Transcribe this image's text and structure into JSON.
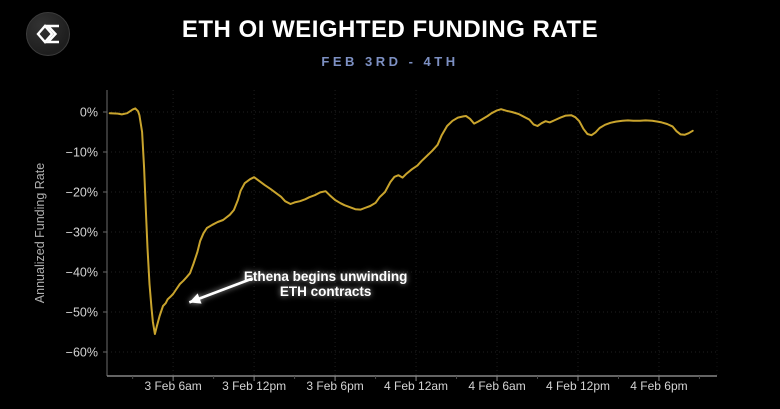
{
  "header": {
    "title": "ETH OI WEIGHTED FUNDING RATE",
    "subtitle": "FEB 3RD - 4TH",
    "logo_name": "sigma-diamond-logo"
  },
  "chart_data": {
    "type": "line",
    "title": "ETH OI WEIGHTED FUNDING RATE",
    "subtitle": "FEB 3RD - 4TH",
    "xlabel": "",
    "ylabel": "Annualized Funding Rate",
    "x_unit": "hours_since_3_Feb_00:00",
    "x_range": [
      1.1,
      46.3
    ],
    "y_range": [
      -66,
      5.5
    ],
    "grid": true,
    "legend": "none",
    "line_color": "#c9a42d",
    "background_color": "#000000",
    "x_ticks": [
      {
        "h": 6,
        "label": "3 Feb 6am"
      },
      {
        "h": 12,
        "label": "3 Feb 12pm"
      },
      {
        "h": 18,
        "label": "3 Feb 6pm"
      },
      {
        "h": 24,
        "label": "4 Feb 12am"
      },
      {
        "h": 30,
        "label": "4 Feb 6am"
      },
      {
        "h": 36,
        "label": "4 Feb 12pm"
      },
      {
        "h": 42,
        "label": "4 Feb 6pm"
      }
    ],
    "y_ticks": [
      {
        "v": 0,
        "label": "0%"
      },
      {
        "v": -10,
        "label": "−10%"
      },
      {
        "v": -20,
        "label": "−20%"
      },
      {
        "v": -30,
        "label": "−30%"
      },
      {
        "v": -40,
        "label": "−40%"
      },
      {
        "v": -50,
        "label": "−50%"
      },
      {
        "v": -60,
        "label": "−60%"
      }
    ],
    "series": [
      {
        "name": "ETH OI weighted funding rate (annualized %)",
        "points": [
          [
            1.3,
            -0.3
          ],
          [
            1.9,
            -0.4
          ],
          [
            2.2,
            -0.6
          ],
          [
            2.6,
            -0.3
          ],
          [
            3.0,
            0.6
          ],
          [
            3.2,
            0.9
          ],
          [
            3.4,
            0.2
          ],
          [
            3.5,
            -0.8
          ],
          [
            3.7,
            -5
          ],
          [
            3.85,
            -14
          ],
          [
            4.0,
            -26
          ],
          [
            4.1,
            -34
          ],
          [
            4.25,
            -43
          ],
          [
            4.4,
            -49
          ],
          [
            4.5,
            -52.5
          ],
          [
            4.65,
            -55.5
          ],
          [
            4.8,
            -53.5
          ],
          [
            5.0,
            -51
          ],
          [
            5.25,
            -48.5
          ],
          [
            5.45,
            -47.8
          ],
          [
            5.6,
            -46.8
          ],
          [
            5.8,
            -46.2
          ],
          [
            6.0,
            -45.5
          ],
          [
            6.2,
            -44.5
          ],
          [
            6.5,
            -43
          ],
          [
            6.75,
            -42.2
          ],
          [
            7.0,
            -41.3
          ],
          [
            7.25,
            -40.3
          ],
          [
            7.5,
            -38
          ],
          [
            7.8,
            -35
          ],
          [
            8.0,
            -32.3
          ],
          [
            8.25,
            -30.3
          ],
          [
            8.5,
            -29
          ],
          [
            8.9,
            -28.2
          ],
          [
            9.3,
            -27.5
          ],
          [
            9.7,
            -27
          ],
          [
            10.2,
            -25.7
          ],
          [
            10.5,
            -24.5
          ],
          [
            10.8,
            -22
          ],
          [
            11.0,
            -19.7
          ],
          [
            11.3,
            -17.8
          ],
          [
            11.7,
            -16.8
          ],
          [
            12.0,
            -16.3
          ],
          [
            12.4,
            -17.3
          ],
          [
            12.8,
            -18.3
          ],
          [
            13.2,
            -19.2
          ],
          [
            13.6,
            -20.2
          ],
          [
            14.0,
            -21.2
          ],
          [
            14.3,
            -22.3
          ],
          [
            14.7,
            -23
          ],
          [
            15.0,
            -22.6
          ],
          [
            15.4,
            -22.3
          ],
          [
            15.8,
            -21.8
          ],
          [
            16.1,
            -21.3
          ],
          [
            16.5,
            -20.8
          ],
          [
            16.9,
            -20.1
          ],
          [
            17.3,
            -19.8
          ],
          [
            17.6,
            -20.8
          ],
          [
            18.0,
            -22
          ],
          [
            18.4,
            -22.8
          ],
          [
            18.7,
            -23.3
          ],
          [
            19.1,
            -23.8
          ],
          [
            19.5,
            -24.3
          ],
          [
            19.9,
            -24.4
          ],
          [
            20.2,
            -24
          ],
          [
            20.6,
            -23.5
          ],
          [
            21.0,
            -22.7
          ],
          [
            21.3,
            -21.3
          ],
          [
            21.7,
            -20
          ],
          [
            22.1,
            -17.5
          ],
          [
            22.4,
            -16.2
          ],
          [
            22.7,
            -15.8
          ],
          [
            23.0,
            -16.4
          ],
          [
            23.3,
            -15.4
          ],
          [
            23.7,
            -14.3
          ],
          [
            24.1,
            -13.4
          ],
          [
            24.4,
            -12.3
          ],
          [
            24.8,
            -11
          ],
          [
            25.2,
            -9.7
          ],
          [
            25.6,
            -8.2
          ],
          [
            25.9,
            -5.8
          ],
          [
            26.3,
            -3.5
          ],
          [
            26.7,
            -2.2
          ],
          [
            27.1,
            -1.4
          ],
          [
            27.5,
            -1.1
          ],
          [
            27.7,
            -1.0
          ],
          [
            28.0,
            -1.7
          ],
          [
            28.3,
            -2.9
          ],
          [
            28.6,
            -2.4
          ],
          [
            28.9,
            -1.8
          ],
          [
            29.3,
            -1.0
          ],
          [
            29.6,
            -0.3
          ],
          [
            30.0,
            0.4
          ],
          [
            30.3,
            0.7
          ],
          [
            30.7,
            0.3
          ],
          [
            31.1,
            0.0
          ],
          [
            31.6,
            -0.5
          ],
          [
            32.0,
            -1.2
          ],
          [
            32.4,
            -1.9
          ],
          [
            32.7,
            -3.1
          ],
          [
            33.0,
            -3.5
          ],
          [
            33.3,
            -2.8
          ],
          [
            33.6,
            -2.3
          ],
          [
            33.9,
            -2.6
          ],
          [
            34.3,
            -2.0
          ],
          [
            34.7,
            -1.4
          ],
          [
            35.1,
            -0.9
          ],
          [
            35.5,
            -0.8
          ],
          [
            35.8,
            -1.3
          ],
          [
            36.1,
            -2.3
          ],
          [
            36.4,
            -4.2
          ],
          [
            36.7,
            -5.5
          ],
          [
            37.0,
            -5.8
          ],
          [
            37.3,
            -5.1
          ],
          [
            37.6,
            -4.0
          ],
          [
            38.0,
            -3.2
          ],
          [
            38.4,
            -2.7
          ],
          [
            38.8,
            -2.4
          ],
          [
            39.3,
            -2.2
          ],
          [
            39.7,
            -2.1
          ],
          [
            40.1,
            -2.2
          ],
          [
            40.6,
            -2.2
          ],
          [
            41.0,
            -2.1
          ],
          [
            41.5,
            -2.2
          ],
          [
            41.9,
            -2.4
          ],
          [
            42.2,
            -2.6
          ],
          [
            42.6,
            -3.0
          ],
          [
            43.0,
            -3.6
          ],
          [
            43.3,
            -4.8
          ],
          [
            43.6,
            -5.6
          ],
          [
            43.9,
            -5.7
          ],
          [
            44.2,
            -5.3
          ],
          [
            44.5,
            -4.7
          ]
        ]
      }
    ],
    "annotation": {
      "lines": [
        "Ethena begins unwinding",
        "ETH contracts"
      ],
      "text_pos": [
        17.3,
        -42.2
      ],
      "arrow_from": [
        11.9,
        -41.6
      ],
      "arrow_to": [
        7.2,
        -47.6
      ],
      "color": "#ffffff"
    },
    "axis_text_color": "#d4d4d4",
    "ylabel_color": "#b0b0b0",
    "grid_color": "rgba(255,255,255,0.12)",
    "left_axis_color": "#4d4d4d",
    "bottom_axis_color": "#858585"
  }
}
